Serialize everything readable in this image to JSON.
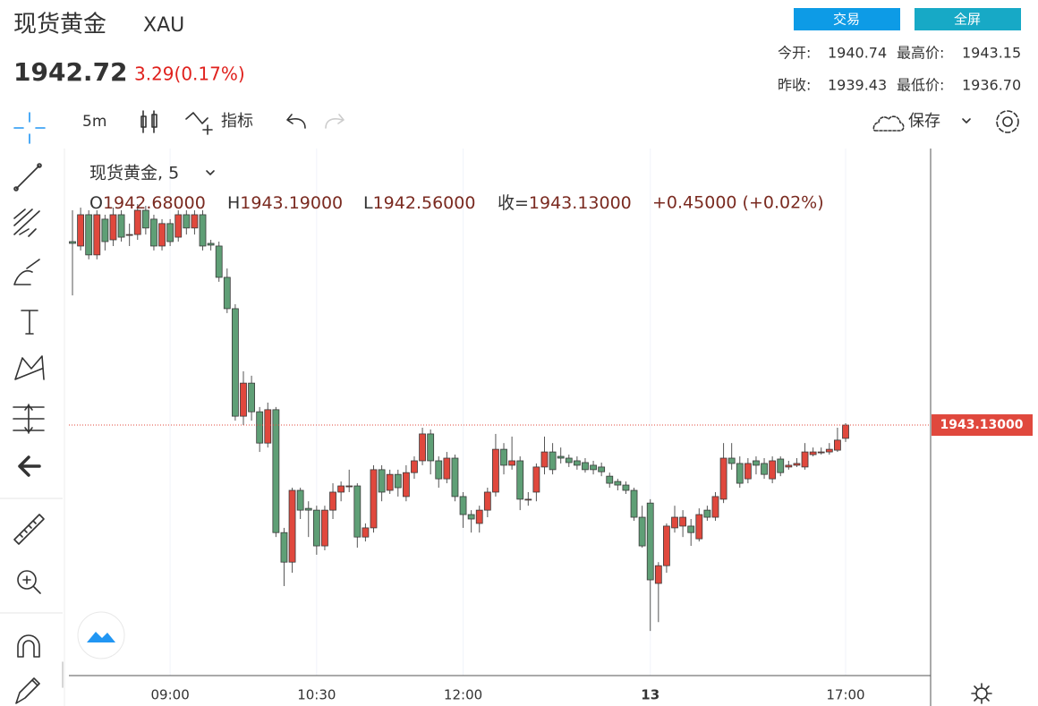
{
  "header": {
    "title": "现货黄金",
    "symbol": "XAU",
    "price": "1942.72",
    "change": "3.29(0.17%)",
    "buttons": [
      "交易",
      "全屏"
    ],
    "stats": [
      {
        "label": "今开:",
        "value": "1940.74"
      },
      {
        "label": "最高价:",
        "value": "1943.15"
      },
      {
        "label": "昨收:",
        "value": "1939.43"
      },
      {
        "label": "最低价:",
        "value": "1936.70"
      }
    ]
  },
  "toolbar": {
    "interval": "5m",
    "indicators": "指标",
    "save": "保存"
  },
  "legend": {
    "title": "现货黄金, 5",
    "items": [
      {
        "label": "O",
        "value": "1942.68000"
      },
      {
        "label": "H",
        "value": "1943.19000"
      },
      {
        "label": "L",
        "value": "1942.56000"
      },
      {
        "label": "收=",
        "value": "1943.13000"
      }
    ],
    "change": "+0.45000 (+0.02%)"
  },
  "chart_data": {
    "type": "candlestick",
    "up_color": "#e0483d",
    "down_color": "#5f9f76",
    "last_price_label": "1943.13000",
    "ylim": [
      1934.65,
      1952.49
    ],
    "categories": [
      null,
      null,
      null,
      null,
      null,
      null,
      null,
      null,
      null,
      null,
      null,
      null,
      "09:00",
      null,
      null,
      null,
      null,
      null,
      null,
      null,
      null,
      null,
      null,
      null,
      null,
      null,
      null,
      null,
      null,
      null,
      "10:30",
      null,
      null,
      null,
      null,
      null,
      null,
      null,
      null,
      null,
      null,
      null,
      null,
      null,
      null,
      null,
      null,
      null,
      "12:00",
      null,
      null,
      null,
      null,
      null,
      null,
      null,
      null,
      null,
      null,
      null,
      null,
      null,
      null,
      null,
      null,
      null,
      null,
      null,
      null,
      null,
      null,
      "13",
      null,
      null,
      null,
      null,
      null,
      null,
      null,
      null,
      null,
      null,
      null,
      null,
      null,
      null,
      null,
      null,
      null,
      null,
      null,
      null,
      null,
      null,
      null,
      "17:00"
    ],
    "open": [
      1949.34,
      1949.19,
      1950.25,
      1948.89,
      1950.1,
      1949.4,
      1950.25,
      1949.58,
      1949.58,
      1950.4,
      1950.1,
      1949.19,
      1949.95,
      1949.49,
      1950.25,
      1949.8,
      1950.25,
      1949.28,
      1949.19,
      1948.13,
      1947.07,
      1943.43,
      1944.55,
      1943.58,
      1942.52,
      1943.65,
      1939.49,
      1938.49,
      1940.92,
      1940.31,
      1940.25,
      1939.04,
      1940.25,
      1940.86,
      1941.07,
      1941.07,
      1939.34,
      1939.65,
      1941.62,
      1940.92,
      1941.46,
      1940.71,
      1941.52,
      1941.92,
      1942.83,
      1941.92,
      1941.31,
      1942.01,
      1940.71,
      1940.1,
      1939.8,
      1940.25,
      1940.86,
      1942.31,
      1941.77,
      1941.92,
      1940.62,
      1940.86,
      1941.71,
      1942.22,
      1942.07,
      1942.01,
      1941.92,
      1941.86,
      1941.77,
      1941.71,
      1941.4,
      1941.22,
      1941.1,
      1940.92,
      1940.01,
      1940.49,
      1937.77,
      1938.37,
      1939.65,
      1939.71,
      1939.71,
      1939.28,
      1940.25,
      1940.01,
      1940.62,
      1942.01,
      1941.83,
      1941.31,
      1941.92,
      1941.83,
      1941.31,
      1941.98,
      1941.71,
      1941.77,
      1941.71,
      1942.13,
      1942.19,
      1942.22,
      1942.28,
      1942.68
    ],
    "high": [
      1950.4,
      1950.49,
      1950.4,
      1950.4,
      1950.25,
      1950.49,
      1950.4,
      1949.95,
      1950.61,
      1950.55,
      1950.25,
      1950.1,
      1950.1,
      1950.4,
      1950.4,
      1950.4,
      1950.4,
      1949.4,
      1949.34,
      1948.43,
      1947.22,
      1944.95,
      1944.8,
      1943.74,
      1943.89,
      1943.74,
      1939.65,
      1941.01,
      1941.01,
      1940.55,
      1940.4,
      1940.4,
      1941.16,
      1941.22,
      1941.62,
      1941.16,
      1939.8,
      1941.77,
      1941.77,
      1941.62,
      1941.62,
      1941.77,
      1942.07,
      1943.04,
      1942.98,
      1942.07,
      1942.22,
      1942.13,
      1940.86,
      1940.25,
      1940.4,
      1941.01,
      1942.83,
      1942.52,
      1942.74,
      1942.07,
      1940.86,
      1941.83,
      1942.74,
      1942.52,
      1942.37,
      1942.13,
      1942.07,
      1942.01,
      1941.92,
      1941.86,
      1941.52,
      1941.31,
      1941.22,
      1941.01,
      1940.4,
      1940.62,
      1938.49,
      1939.8,
      1940.4,
      1940.25,
      1939.95,
      1940.31,
      1940.4,
      1940.86,
      1942.52,
      1942.52,
      1942.07,
      1942.01,
      1942.07,
      1942.01,
      1942.07,
      1942.07,
      1941.92,
      1942.01,
      1942.52,
      1942.37,
      1942.37,
      1942.52,
      1943.04,
      1943.19
    ],
    "low": [
      1947.52,
      1949.04,
      1948.74,
      1948.74,
      1949.04,
      1949.19,
      1949.34,
      1949.19,
      1949.4,
      1949.58,
      1949.04,
      1949.04,
      1949.19,
      1949.34,
      1949.58,
      1949.58,
      1949.04,
      1949.04,
      1947.98,
      1946.92,
      1943.28,
      1943.13,
      1943.28,
      1942.22,
      1942.37,
      1939.34,
      1937.68,
      1938.13,
      1939.95,
      1939.34,
      1938.74,
      1938.89,
      1939.95,
      1940.55,
      1940.86,
      1938.98,
      1939.19,
      1939.49,
      1940.55,
      1940.8,
      1940.71,
      1940.55,
      1941.31,
      1941.77,
      1941.46,
      1941.01,
      1941.16,
      1940.55,
      1939.65,
      1939.49,
      1939.49,
      1940.01,
      1940.71,
      1941.46,
      1941.62,
      1940.25,
      1940.4,
      1940.55,
      1941.46,
      1941.46,
      1941.83,
      1941.71,
      1941.62,
      1941.52,
      1941.46,
      1941.4,
      1941.01,
      1940.92,
      1940.8,
      1939.89,
      1938.98,
      1936.16,
      1936.46,
      1938.13,
      1939.49,
      1939.34,
      1939.04,
      1939.19,
      1939.89,
      1939.89,
      1940.49,
      1941.62,
      1941.01,
      1941.16,
      1941.46,
      1941.31,
      1941.16,
      1941.4,
      1941.62,
      1941.71,
      1941.62,
      1942.07,
      1942.13,
      1942.13,
      1942.22,
      1942.56
    ],
    "close": [
      1949.28,
      1950.25,
      1948.89,
      1950.25,
      1949.34,
      1950.25,
      1949.49,
      1949.58,
      1950.4,
      1949.8,
      1949.19,
      1949.95,
      1949.34,
      1950.25,
      1949.8,
      1950.25,
      1949.19,
      1949.22,
      1948.13,
      1947.07,
      1943.43,
      1944.55,
      1943.58,
      1942.52,
      1943.65,
      1939.49,
      1938.49,
      1940.92,
      1940.25,
      1940.25,
      1939.04,
      1940.25,
      1940.86,
      1941.07,
      1941.07,
      1939.34,
      1939.65,
      1941.62,
      1940.86,
      1941.46,
      1941.01,
      1941.52,
      1941.92,
      1942.83,
      1941.92,
      1941.31,
      1942.01,
      1940.71,
      1940.1,
      1939.95,
      1940.25,
      1940.86,
      1942.31,
      1941.77,
      1941.92,
      1940.62,
      1940.62,
      1941.71,
      1942.22,
      1941.62,
      1942.01,
      1941.86,
      1941.77,
      1941.62,
      1941.62,
      1941.55,
      1941.16,
      1941.1,
      1940.92,
      1940.01,
      1939.04,
      1937.89,
      1938.37,
      1939.71,
      1940.01,
      1940.01,
      1939.49,
      1940.1,
      1940.01,
      1940.71,
      1942.01,
      1941.83,
      1941.16,
      1941.83,
      1941.77,
      1941.46,
      1941.92,
      1941.52,
      1941.77,
      1941.83,
      1942.22,
      1942.22,
      1942.22,
      1942.31,
      1942.62,
      1943.13
    ]
  }
}
